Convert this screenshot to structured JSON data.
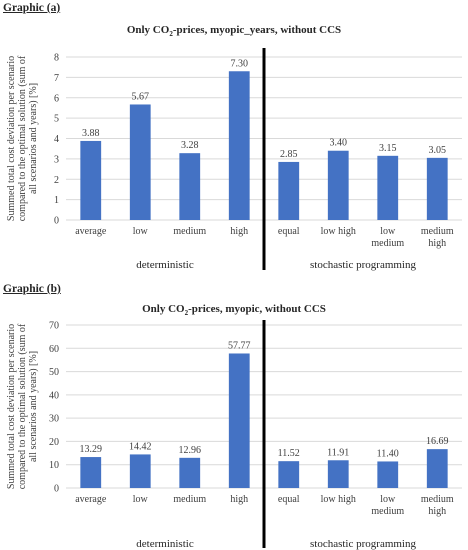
{
  "chart_data": [
    {
      "type": "bar",
      "graphic_label": "Graphic (a)",
      "title_before": "Only CO",
      "title_sub": "2",
      "title_after": "-prices, myopic_years, without CCS",
      "ylabel_line1": "Summed total cost deviation per scenario",
      "ylabel_line2": "compared to the optimal solution (sum of",
      "ylabel_line3": "all scenarios and years) [%]",
      "ylim": [
        0,
        8
      ],
      "yticks": [
        "0",
        "1",
        "2",
        "3",
        "4",
        "5",
        "6",
        "7",
        "8"
      ],
      "categories": [
        "average",
        "low",
        "medium",
        "high",
        "equal",
        "low high",
        "low medium",
        "medium high"
      ],
      "category_lines": [
        [
          "average"
        ],
        [
          "low"
        ],
        [
          "medium"
        ],
        [
          "high"
        ],
        [
          "equal"
        ],
        [
          "low high"
        ],
        [
          "low",
          "medium"
        ],
        [
          "medium",
          "high"
        ]
      ],
      "values": [
        3.88,
        5.67,
        3.28,
        7.3,
        2.85,
        3.4,
        3.15,
        3.05
      ],
      "value_labels": [
        "3.88",
        "5.67",
        "3.28",
        "7.30",
        "2.85",
        "3.40",
        "3.15",
        "3.05"
      ],
      "groups": [
        "deterministic",
        "stochastic programming"
      ],
      "bar_color": "#4472c4",
      "grid": true,
      "legend": "none"
    },
    {
      "type": "bar",
      "graphic_label": "Graphic (b)",
      "title_before": "Only CO",
      "title_sub": "2",
      "title_after": "-prices, myopic, without CCS",
      "ylabel_line1": "Summed total cost deviation per scenario",
      "ylabel_line2": "compared to the optimal solution (sum of",
      "ylabel_line3": "all scenarios and years) [%]",
      "ylim": [
        0,
        70
      ],
      "yticks": [
        "0",
        "10",
        "20",
        "30",
        "40",
        "50",
        "60",
        "70"
      ],
      "categories": [
        "average",
        "low",
        "medium",
        "high",
        "equal",
        "low high",
        "low medium",
        "medium high"
      ],
      "category_lines": [
        [
          "average"
        ],
        [
          "low"
        ],
        [
          "medium"
        ],
        [
          "high"
        ],
        [
          "equal"
        ],
        [
          "low high"
        ],
        [
          "low",
          "medium"
        ],
        [
          "medium",
          "high"
        ]
      ],
      "values": [
        13.29,
        14.42,
        12.96,
        57.77,
        11.52,
        11.91,
        11.4,
        16.69
      ],
      "value_labels": [
        "13.29",
        "14.42",
        "12.96",
        "57.77",
        "11.52",
        "11.91",
        "11.40",
        "16.69"
      ],
      "groups": [
        "deterministic",
        "stochastic programming"
      ],
      "bar_color": "#4472c4",
      "grid": true,
      "legend": "none"
    }
  ]
}
